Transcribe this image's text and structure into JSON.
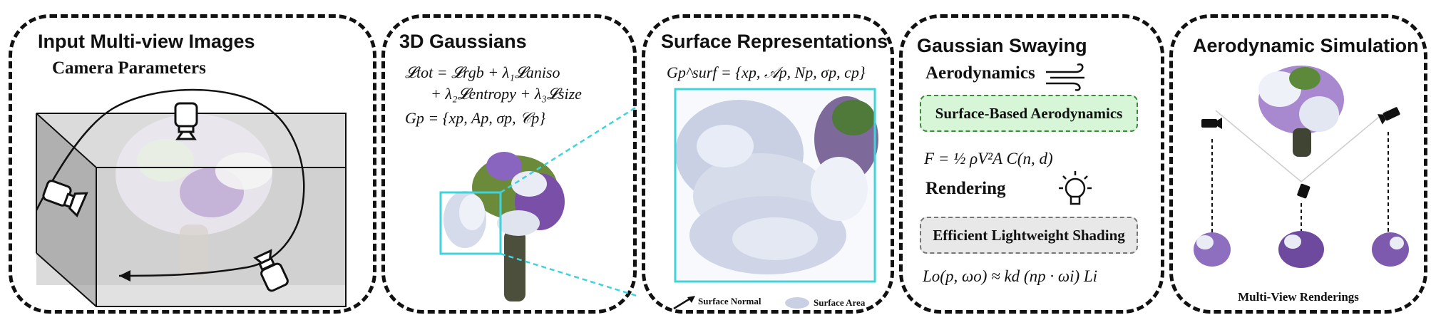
{
  "panels": {
    "input": {
      "title": "Input Multi-view Images",
      "subtitle": "Camera Parameters"
    },
    "gaussians": {
      "title": "3D Gaussians",
      "loss_line1": "𝓛tot = 𝓛rgb + λ₁𝓛aniso",
      "loss_line2": "+ λ₂𝓛entropy + λ₃𝓛size",
      "gp_def": "Gp = {xp, Ap, σp, 𝒞p}"
    },
    "surface": {
      "title": "Surface Representations",
      "gsurf_def": "Gp^surf = {xp, 𝒜p, Np, σp, cp}",
      "legend_normal": "Surface Normal",
      "legend_area": "Surface Area"
    },
    "swaying": {
      "title": "Gaussian Swaying",
      "aero_label": "Aerodynamics",
      "aero_box": "Surface-Based Aerodynamics",
      "force_eq": "F = ½ ρV²A C(n, d)",
      "render_label": "Rendering",
      "shade_box": "Efficient Lightweight Shading",
      "render_eq": "Lo(p, ωo) ≈ kd (np · ωi) Li"
    },
    "simulation": {
      "title": "Aerodynamic Simulation",
      "caption": "Multi-View Renderings"
    }
  },
  "colors": {
    "border": "#111111",
    "aero_box_fill": "#d7f5d7",
    "aero_box_border": "#3a8a3a",
    "shade_box_fill": "#e8e8e8",
    "shade_box_border": "#777777",
    "zoom_cyan": "#3fd3dc"
  },
  "icons": [
    "camera-icon",
    "wind-icon",
    "lightbulb-icon",
    "surface-normal-arrow-icon"
  ]
}
